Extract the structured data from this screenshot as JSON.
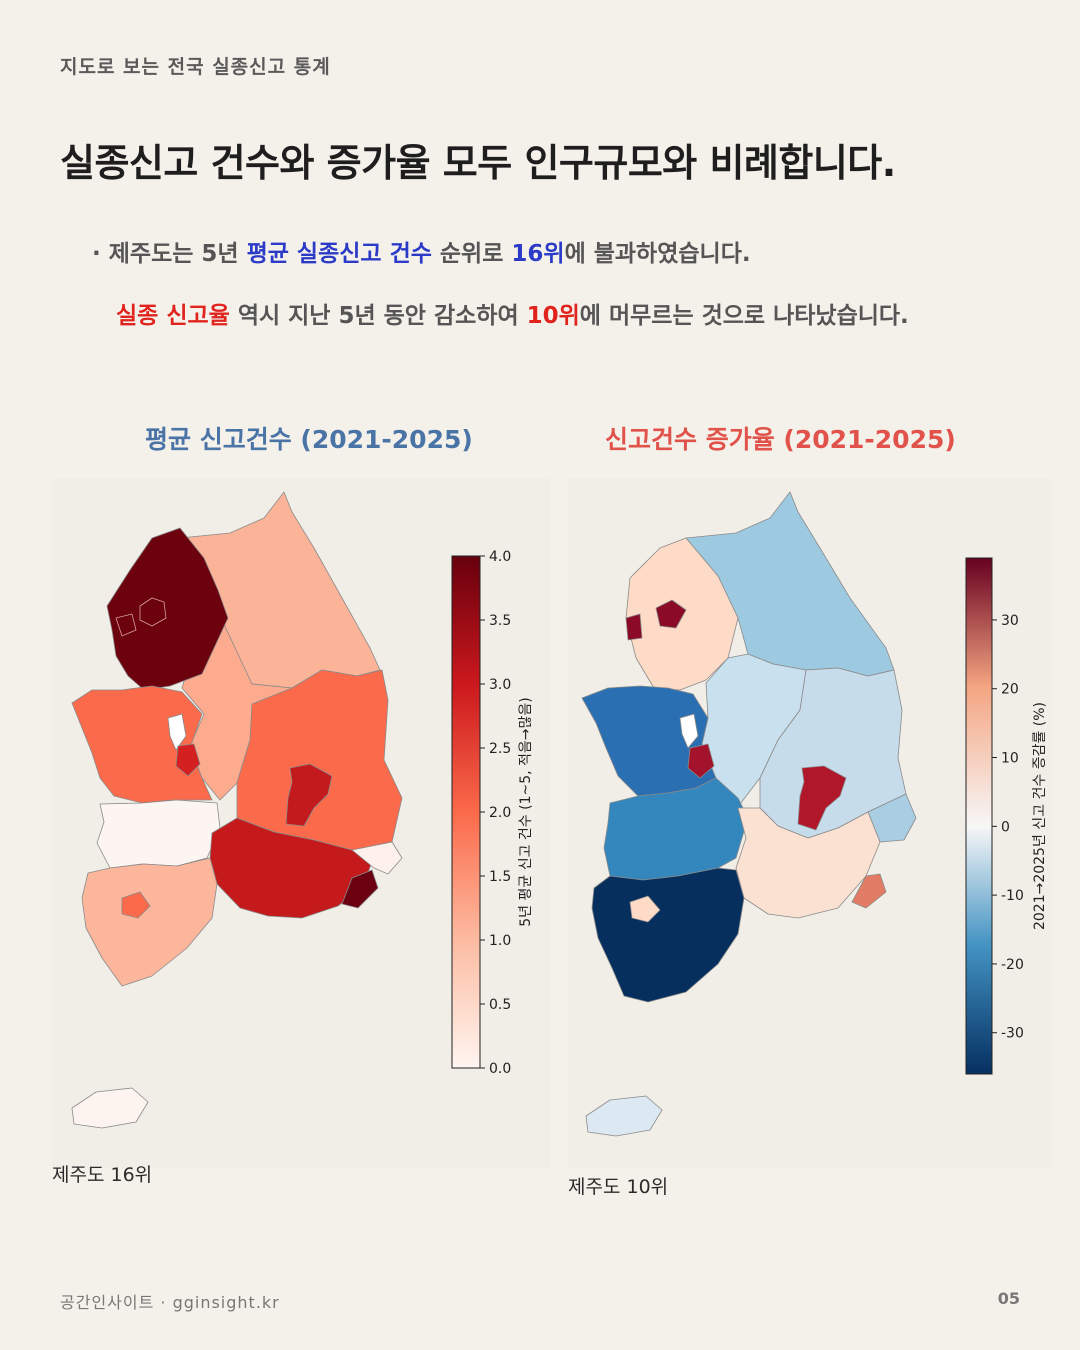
{
  "header": {
    "kicker": "지도로 보는 전국 실종신고 통계",
    "headline": "실종신고 건수와 증가율 모두 인구규모와 비례합니다."
  },
  "summary": {
    "line1": {
      "bullet": "·",
      "part1": "제주도는 5년 ",
      "highlight1": "평균 실종신고 건수",
      "part2": " 순위로 ",
      "highlight2": "16위",
      "part3": "에 불과하였습니다."
    },
    "line2": {
      "highlight1": "실종 신고율",
      "part1": " 역시 지난 5년 동안 감소하여 ",
      "highlight2": "10위",
      "part2": "에 머무르는 것으로 나타났습니다."
    }
  },
  "maps": {
    "left": {
      "title": "평균 신고건수 (2021-2025)",
      "colorbar_label": "5년 평균 신고 건수 (1~5, 적음→많음)",
      "colorbar_ticks": [
        "0.0",
        "0.5",
        "1.0",
        "1.5",
        "2.0",
        "2.5",
        "3.0",
        "3.5",
        "4.0"
      ],
      "colormap": "Reds",
      "jeju_label": "제주도 16위"
    },
    "right": {
      "title": "신고건수 증가율 (2021-2025)",
      "colorbar_label": "2021→2025년 신고 건수 증감률 (%)",
      "colorbar_ticks": [
        "30",
        "20",
        "10",
        "0",
        "-10",
        "-20",
        "-30"
      ],
      "colormap": "RdBu_r",
      "jeju_label": "제주도 10위"
    }
  },
  "footer": {
    "brand": "공간인사이트 · gginsight.kr",
    "page": "05"
  },
  "colors": {
    "background": "#f4f1eb",
    "blue_highlight": "#2b3bc7",
    "red_highlight": "#e0241d",
    "left_title": "#4a73a6",
    "right_title": "#e0524a"
  }
}
